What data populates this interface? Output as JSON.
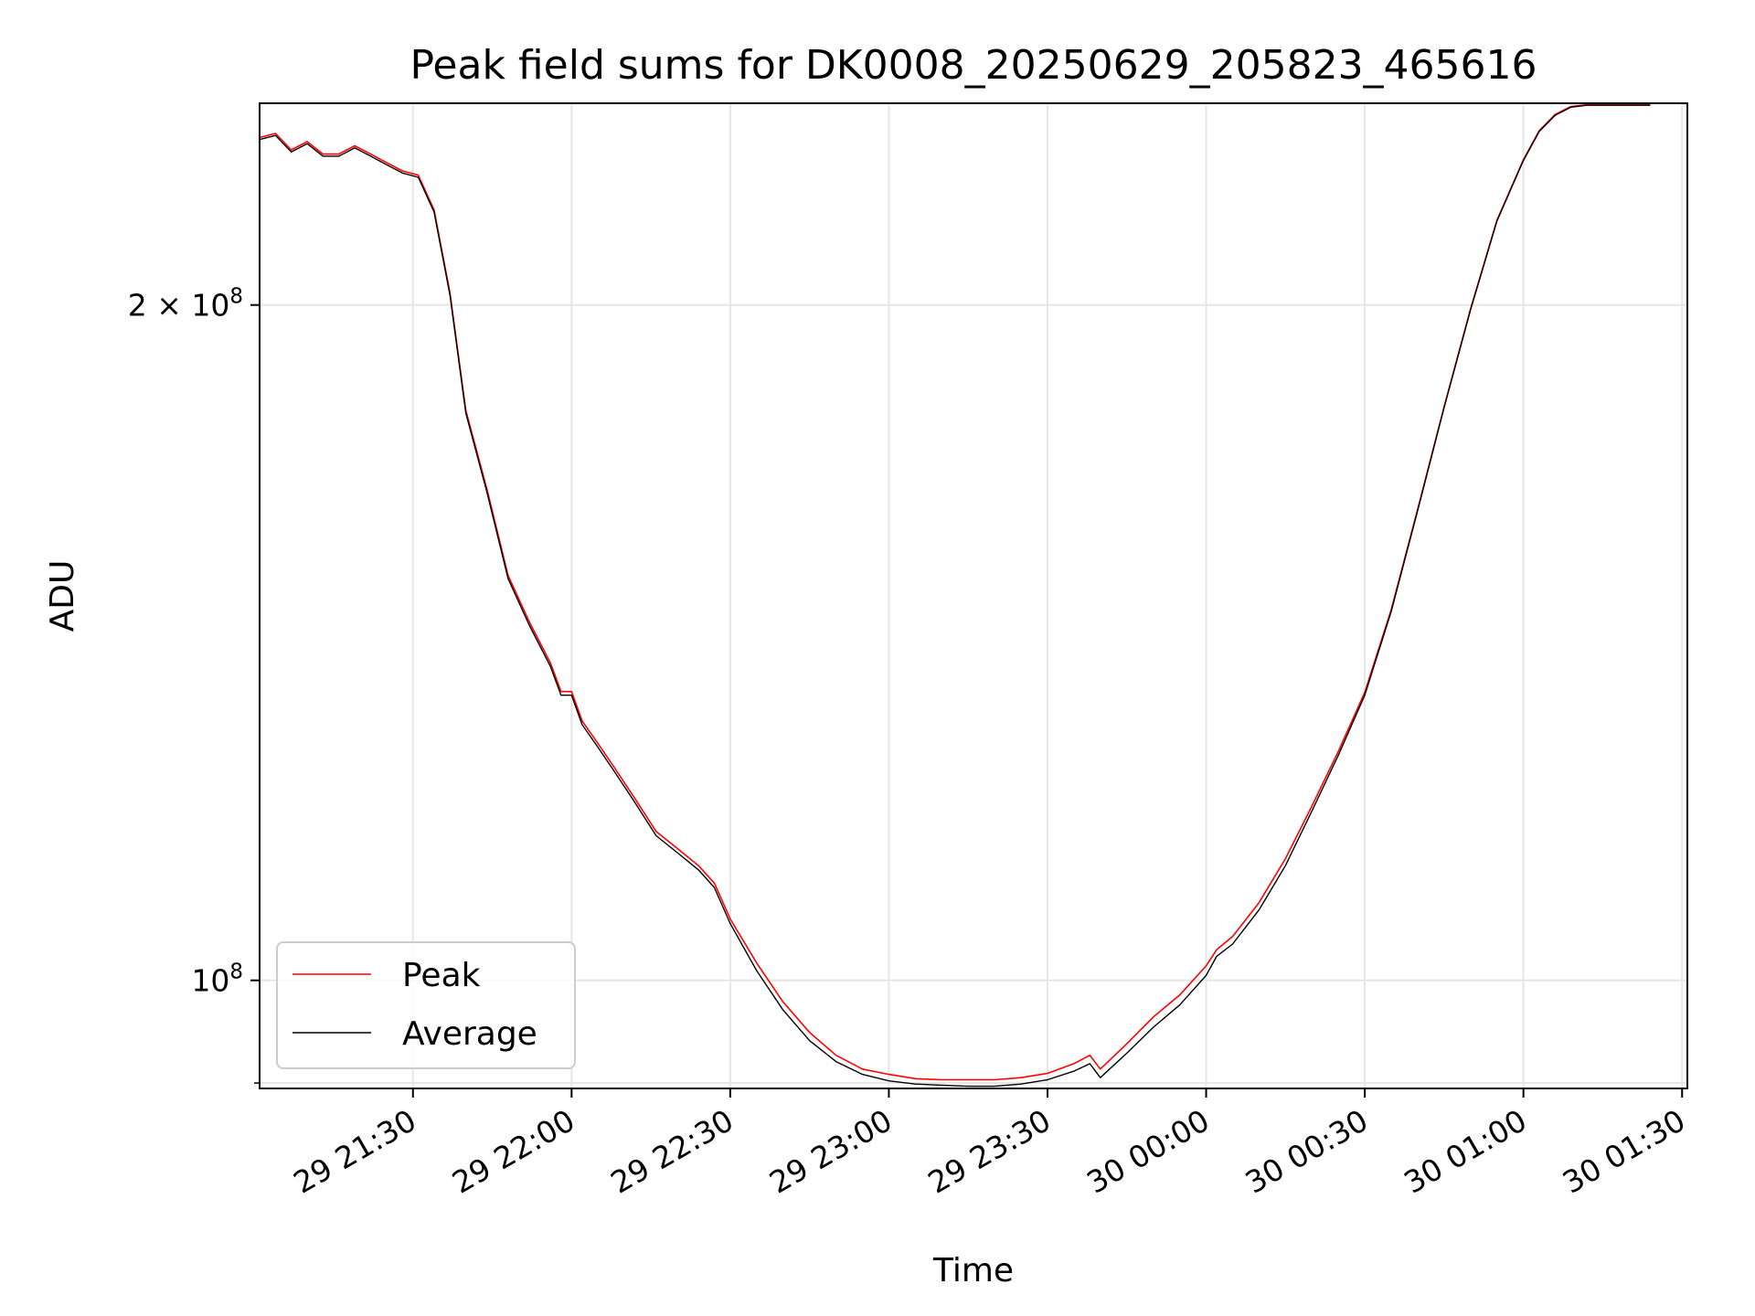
{
  "chart_data": {
    "type": "line",
    "title": "Peak field sums for DK0008_20250629_205823_465616",
    "xlabel": "Time",
    "ylabel": "ADU",
    "y_scale": "log",
    "x_range": [
      "2025-06-29 21:01",
      "2025-06-30 01:31"
    ],
    "ylim": [
      89500000,
      246000000
    ],
    "x_ticks": [
      {
        "t": "2025-06-29 21:30",
        "label": "29 21:30"
      },
      {
        "t": "2025-06-29 22:00",
        "label": "29 22:00"
      },
      {
        "t": "2025-06-29 22:30",
        "label": "29 22:30"
      },
      {
        "t": "2025-06-29 23:00",
        "label": "29 23:00"
      },
      {
        "t": "2025-06-29 23:30",
        "label": "29 23:30"
      },
      {
        "t": "2025-06-30 00:00",
        "label": "30 00:00"
      },
      {
        "t": "2025-06-30 00:30",
        "label": "30 00:30"
      },
      {
        "t": "2025-06-30 01:00",
        "label": "30 01:00"
      },
      {
        "t": "2025-06-30 01:30",
        "label": "30 01:30"
      }
    ],
    "y_ticks": [
      {
        "value": 100000000,
        "base": "10",
        "exp": "8",
        "mant": ""
      },
      {
        "value": 200000000,
        "base": "10",
        "exp": "8",
        "mant": "2 × "
      }
    ],
    "y_minor_ticks": [
      90000000
    ],
    "grid": true,
    "legend_position": "lower-left",
    "colors": {
      "peak": "#ff0000",
      "average": "#000000",
      "grid": "#e6e6e6"
    },
    "series": [
      {
        "name": "Average",
        "color": "#000000",
        "x": [
          "2025-06-29 21:01",
          "2025-06-29 21:04",
          "2025-06-29 21:07",
          "2025-06-29 21:10",
          "2025-06-29 21:13",
          "2025-06-29 21:16",
          "2025-06-29 21:19",
          "2025-06-29 21:22",
          "2025-06-29 21:25",
          "2025-06-29 21:28",
          "2025-06-29 21:31",
          "2025-06-29 21:34",
          "2025-06-29 21:37",
          "2025-06-29 21:40",
          "2025-06-29 21:44",
          "2025-06-29 21:48",
          "2025-06-29 21:52",
          "2025-06-29 21:56",
          "2025-06-29 21:58",
          "2025-06-29 22:00",
          "2025-06-29 22:02",
          "2025-06-29 22:05",
          "2025-06-29 22:08",
          "2025-06-29 22:12",
          "2025-06-29 22:16",
          "2025-06-29 22:20",
          "2025-06-29 22:24",
          "2025-06-29 22:27",
          "2025-06-29 22:30",
          "2025-06-29 22:35",
          "2025-06-29 22:40",
          "2025-06-29 22:45",
          "2025-06-29 22:50",
          "2025-06-29 22:55",
          "2025-06-29 23:00",
          "2025-06-29 23:05",
          "2025-06-29 23:10",
          "2025-06-29 23:15",
          "2025-06-29 23:20",
          "2025-06-29 23:25",
          "2025-06-29 23:30",
          "2025-06-29 23:35",
          "2025-06-29 23:38",
          "2025-06-29 23:40",
          "2025-06-29 23:45",
          "2025-06-29 23:50",
          "2025-06-29 23:55",
          "2025-06-30 00:00",
          "2025-06-30 00:02",
          "2025-06-30 00:05",
          "2025-06-30 00:10",
          "2025-06-30 00:15",
          "2025-06-30 00:20",
          "2025-06-30 00:25",
          "2025-06-30 00:30",
          "2025-06-30 00:35",
          "2025-06-30 00:40",
          "2025-06-30 00:45",
          "2025-06-30 00:50",
          "2025-06-30 00:55",
          "2025-06-30 01:00",
          "2025-06-30 01:03",
          "2025-06-30 01:06",
          "2025-06-30 01:09",
          "2025-06-30 01:12",
          "2025-06-30 01:16",
          "2025-06-30 01:20",
          "2025-06-30 01:24"
        ],
        "y": [
          237000000,
          238000000,
          234000000,
          236000000,
          233000000,
          233000000,
          235000000,
          233000000,
          231000000,
          229000000,
          228000000,
          220000000,
          202000000,
          179000000,
          165000000,
          151000000,
          144000000,
          138000000,
          134000000,
          134000000,
          130000000,
          127000000,
          124000000,
          120000000,
          116000000,
          114000000,
          112000000,
          110000000,
          106000000,
          101000000,
          97000000,
          94000000,
          92000000,
          90800000,
          90200000,
          89900000,
          89800000,
          89700000,
          89700000,
          89900000,
          90300000,
          91100000,
          91800000,
          90500000,
          92800000,
          95300000,
          97500000,
          100500000,
          102500000,
          103800000,
          107500000,
          112500000,
          119000000,
          126000000,
          134000000,
          146000000,
          162000000,
          180000000,
          199000000,
          218000000,
          232000000,
          239000000,
          243000000,
          245000000,
          245500000,
          245500000,
          245500000,
          245500000
        ]
      },
      {
        "name": "Peak",
        "color": "#ff0000",
        "x": [
          "2025-06-29 21:01",
          "2025-06-29 21:04",
          "2025-06-29 21:07",
          "2025-06-29 21:10",
          "2025-06-29 21:13",
          "2025-06-29 21:16",
          "2025-06-29 21:19",
          "2025-06-29 21:22",
          "2025-06-29 21:25",
          "2025-06-29 21:28",
          "2025-06-29 21:31",
          "2025-06-29 21:34",
          "2025-06-29 21:37",
          "2025-06-29 21:40",
          "2025-06-29 21:44",
          "2025-06-29 21:48",
          "2025-06-29 21:52",
          "2025-06-29 21:56",
          "2025-06-29 21:58",
          "2025-06-29 22:00",
          "2025-06-29 22:02",
          "2025-06-29 22:05",
          "2025-06-29 22:08",
          "2025-06-29 22:12",
          "2025-06-29 22:16",
          "2025-06-29 22:20",
          "2025-06-29 22:24",
          "2025-06-29 22:27",
          "2025-06-29 22:30",
          "2025-06-29 22:35",
          "2025-06-29 22:40",
          "2025-06-29 22:45",
          "2025-06-29 22:50",
          "2025-06-29 22:55",
          "2025-06-29 23:00",
          "2025-06-29 23:05",
          "2025-06-29 23:10",
          "2025-06-29 23:15",
          "2025-06-29 23:20",
          "2025-06-29 23:25",
          "2025-06-29 23:30",
          "2025-06-29 23:35",
          "2025-06-29 23:38",
          "2025-06-29 23:40",
          "2025-06-29 23:45",
          "2025-06-29 23:50",
          "2025-06-29 23:55",
          "2025-06-30 00:00",
          "2025-06-30 00:02",
          "2025-06-30 00:05",
          "2025-06-30 00:10",
          "2025-06-30 00:15",
          "2025-06-30 00:20",
          "2025-06-30 00:25",
          "2025-06-30 00:30",
          "2025-06-30 00:35",
          "2025-06-30 00:40",
          "2025-06-30 00:45",
          "2025-06-30 00:50",
          "2025-06-30 00:55",
          "2025-06-30 01:00",
          "2025-06-30 01:03",
          "2025-06-30 01:06",
          "2025-06-30 01:09",
          "2025-06-30 01:12",
          "2025-06-30 01:16",
          "2025-06-30 01:20",
          "2025-06-30 01:24"
        ],
        "y": [
          237500000,
          238500000,
          234500000,
          236500000,
          233500000,
          233500000,
          235500000,
          233500000,
          231500000,
          229500000,
          228500000,
          220500000,
          202500000,
          179500000,
          165500000,
          151500000,
          144500000,
          138500000,
          134500000,
          134500000,
          130500000,
          127500000,
          124500000,
          120500000,
          116500000,
          114500000,
          112500000,
          110500000,
          106500000,
          101800000,
          97800000,
          94800000,
          92600000,
          91300000,
          90800000,
          90400000,
          90300000,
          90300000,
          90300000,
          90500000,
          90900000,
          91800000,
          92600000,
          91300000,
          93700000,
          96300000,
          98500000,
          101500000,
          103200000,
          104600000,
          108300000,
          113300000,
          119600000,
          126500000,
          134400000,
          146300000,
          162200000,
          180200000,
          199200000,
          218200000,
          232200000,
          239200000,
          243200000,
          245200000,
          245600000,
          245600000,
          245600000,
          245600000
        ]
      }
    ]
  }
}
